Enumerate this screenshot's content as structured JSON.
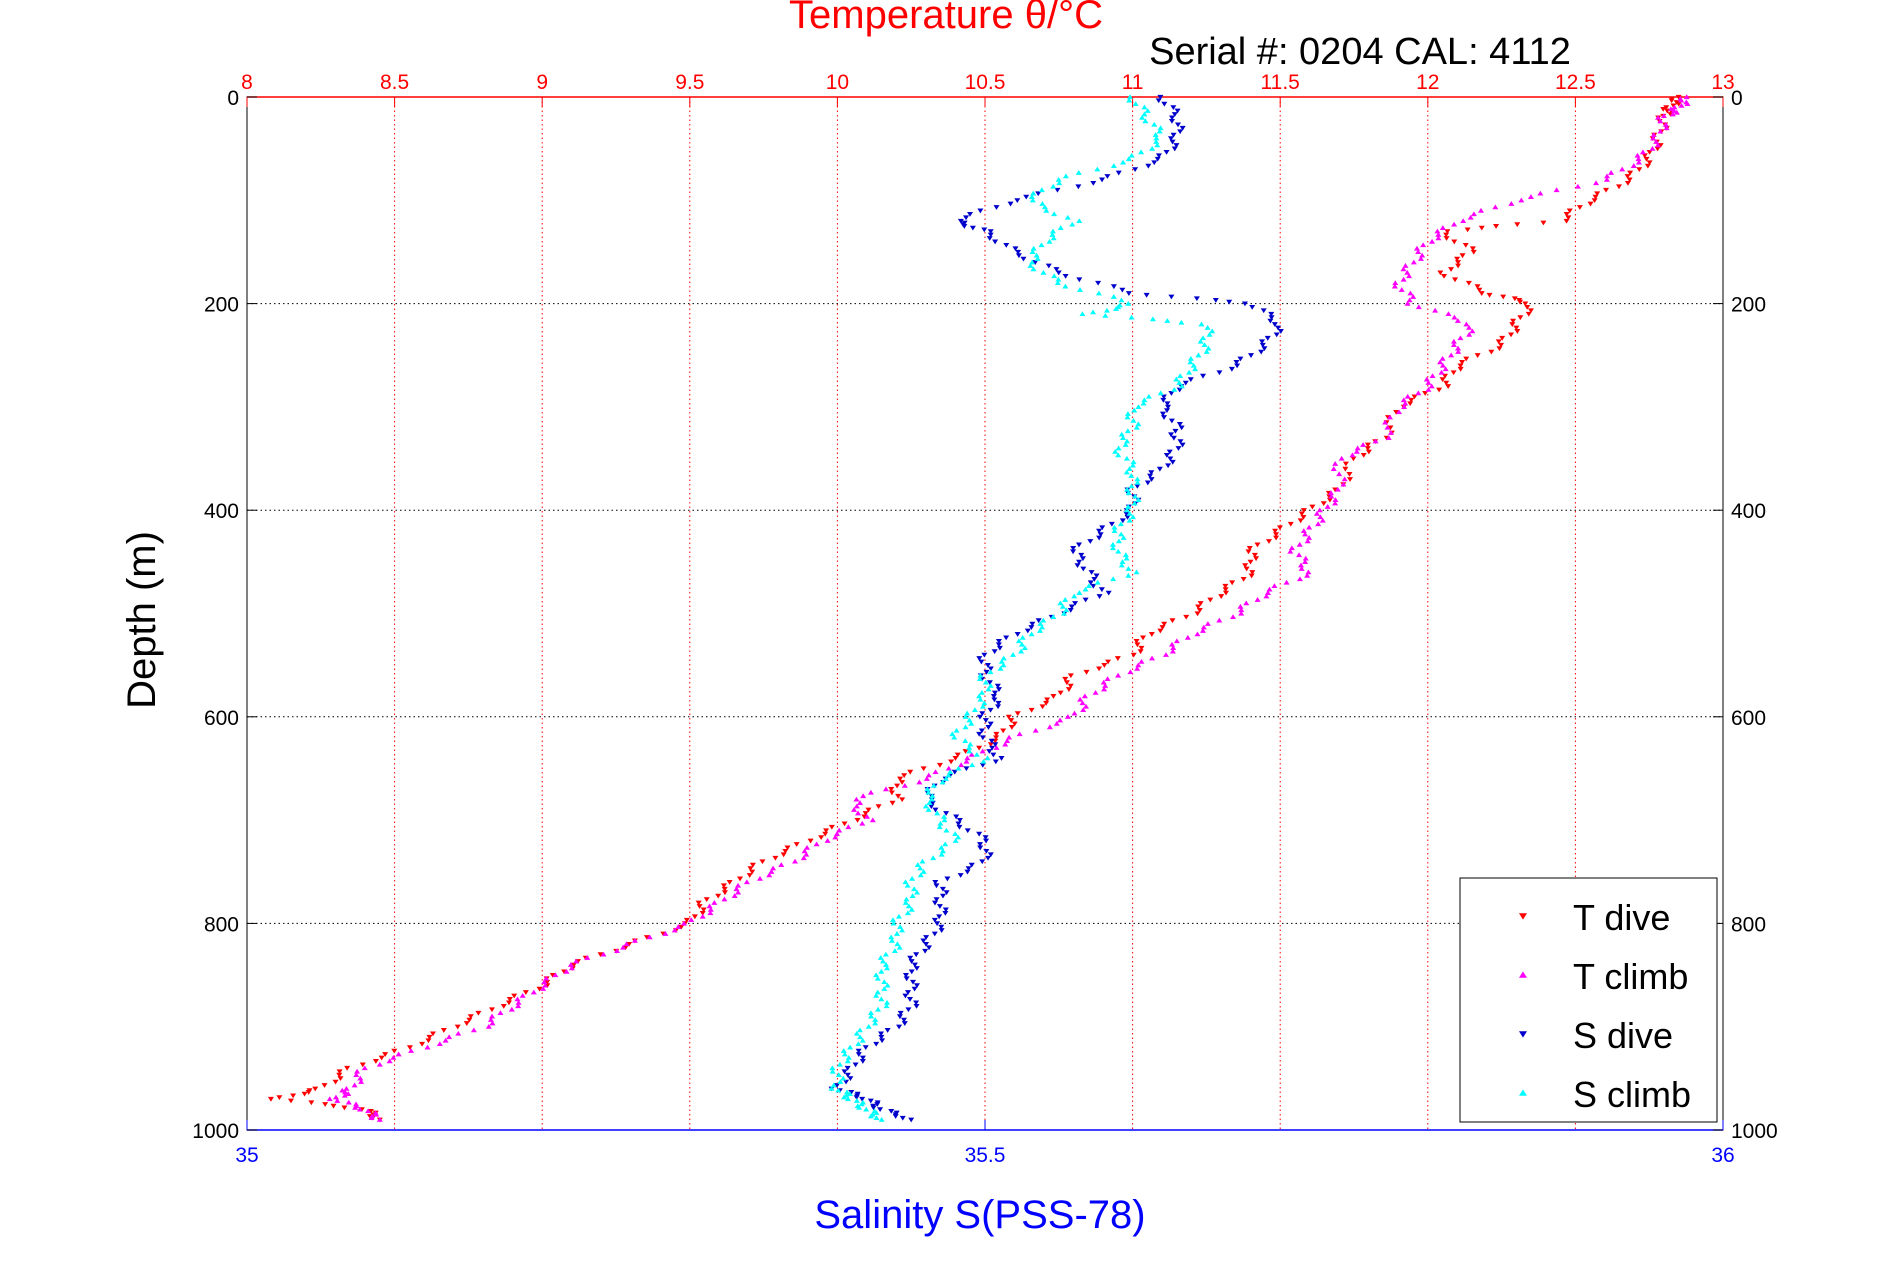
{
  "chart_data": {
    "type": "scatter",
    "title": "Temperature θ/°C",
    "subtitle": "Serial #: 0204  CAL: 4112",
    "xlabel_bottom": "Salinity S(PSS-78)",
    "ylabel": "Depth (m)",
    "top_axis": {
      "range": [
        8,
        13
      ],
      "ticks": [
        "8",
        "8.5",
        "9",
        "9.5",
        "10",
        "10.5",
        "11",
        "11.5",
        "12",
        "12.5",
        "13"
      ],
      "color": "#ff0000"
    },
    "bottom_axis": {
      "range": [
        35,
        36
      ],
      "ticks": [
        "35",
        "35.5",
        "36"
      ],
      "color": "#0000ff"
    },
    "y_axis": {
      "range": [
        0,
        1000
      ],
      "reversed": true,
      "ticks": [
        "0",
        "200",
        "400",
        "600",
        "800",
        "1000"
      ]
    },
    "grid": true,
    "legend_position": "bottom-right",
    "series": [
      {
        "name": "T dive",
        "axis": "temperature",
        "color": "#ff0000",
        "marker": "triangle-down",
        "depth": [
          0,
          10,
          20,
          40,
          60,
          80,
          100,
          120,
          130,
          150,
          170,
          190,
          200,
          220,
          240,
          260,
          280,
          300,
          330,
          350,
          380,
          400,
          420,
          440,
          460,
          480,
          500,
          520,
          540,
          560,
          580,
          600,
          620,
          640,
          660,
          680,
          700,
          720,
          740,
          760,
          780,
          800,
          820,
          840,
          860,
          880,
          900,
          920,
          940,
          960,
          970,
          980,
          990
        ],
        "values": [
          12.85,
          12.82,
          12.8,
          12.78,
          12.75,
          12.68,
          12.55,
          12.45,
          12.05,
          12.15,
          12.05,
          12.2,
          12.35,
          12.3,
          12.25,
          12.1,
          12.05,
          11.9,
          11.85,
          11.75,
          11.7,
          11.6,
          11.5,
          11.4,
          11.4,
          11.3,
          11.2,
          11.05,
          11.0,
          10.8,
          10.75,
          10.6,
          10.55,
          10.4,
          10.2,
          10.2,
          10.05,
          9.9,
          9.75,
          9.65,
          9.55,
          9.5,
          9.3,
          9.1,
          9.0,
          8.85,
          8.7,
          8.55,
          8.35,
          8.25,
          8.1,
          8.4,
          8.45
        ]
      },
      {
        "name": "T climb",
        "axis": "temperature",
        "color": "#ff00ff",
        "marker": "triangle-up",
        "depth": [
          0,
          10,
          20,
          40,
          60,
          80,
          100,
          120,
          140,
          160,
          180,
          200,
          220,
          240,
          260,
          280,
          300,
          330,
          350,
          380,
          400,
          420,
          440,
          460,
          480,
          500,
          520,
          540,
          560,
          580,
          600,
          620,
          640,
          660,
          680,
          700,
          720,
          740,
          760,
          780,
          800,
          820,
          840,
          860,
          880,
          900,
          920,
          940,
          960,
          970,
          980,
          990
        ],
        "values": [
          12.88,
          12.85,
          12.8,
          12.78,
          12.72,
          12.6,
          12.3,
          12.1,
          12.0,
          11.95,
          11.9,
          11.95,
          12.15,
          12.1,
          12.05,
          12.0,
          11.9,
          11.85,
          11.7,
          11.7,
          11.65,
          11.6,
          11.55,
          11.6,
          11.45,
          11.35,
          11.2,
          11.1,
          10.95,
          10.85,
          10.8,
          10.6,
          10.45,
          10.3,
          10.05,
          10.1,
          9.95,
          9.85,
          9.7,
          9.6,
          9.5,
          9.3,
          9.1,
          9.0,
          8.9,
          8.8,
          8.6,
          8.4,
          8.35,
          8.3,
          8.4,
          8.45
        ]
      },
      {
        "name": "S dive",
        "axis": "salinity",
        "color": "#0000cc",
        "marker": "triangle-down",
        "depth": [
          0,
          20,
          40,
          60,
          80,
          100,
          120,
          130,
          150,
          170,
          190,
          200,
          220,
          240,
          260,
          280,
          300,
          320,
          340,
          360,
          380,
          400,
          420,
          440,
          460,
          480,
          500,
          520,
          540,
          560,
          580,
          600,
          620,
          640,
          660,
          680,
          700,
          720,
          740,
          760,
          780,
          800,
          820,
          840,
          860,
          880,
          900,
          920,
          940,
          960,
          970,
          980,
          990
        ],
        "values": [
          35.62,
          35.63,
          35.63,
          35.62,
          35.58,
          35.52,
          35.48,
          35.5,
          35.52,
          35.55,
          35.6,
          35.68,
          35.7,
          35.69,
          35.67,
          35.63,
          35.62,
          35.63,
          35.63,
          35.62,
          35.6,
          35.6,
          35.58,
          35.56,
          35.57,
          35.58,
          35.55,
          35.52,
          35.5,
          35.5,
          35.51,
          35.5,
          35.5,
          35.51,
          35.47,
          35.46,
          35.48,
          35.5,
          35.5,
          35.47,
          35.47,
          35.47,
          35.46,
          35.45,
          35.45,
          35.45,
          35.44,
          35.42,
          35.41,
          35.4,
          35.42,
          35.43,
          35.45
        ]
      },
      {
        "name": "S climb",
        "axis": "salinity",
        "color": "#00ffff",
        "marker": "triangle-up",
        "depth": [
          0,
          20,
          40,
          60,
          80,
          100,
          120,
          140,
          160,
          180,
          200,
          210,
          220,
          240,
          260,
          280,
          300,
          320,
          340,
          360,
          380,
          400,
          420,
          440,
          460,
          480,
          500,
          520,
          540,
          560,
          580,
          600,
          620,
          640,
          660,
          680,
          700,
          720,
          740,
          760,
          780,
          800,
          820,
          840,
          860,
          880,
          900,
          920,
          940,
          960,
          970,
          980,
          990
        ],
        "values": [
          35.6,
          35.61,
          35.62,
          35.6,
          35.55,
          35.53,
          35.56,
          35.54,
          35.53,
          35.55,
          35.6,
          35.57,
          35.65,
          35.65,
          35.64,
          35.63,
          35.6,
          35.6,
          35.59,
          35.6,
          35.6,
          35.6,
          35.59,
          35.59,
          35.6,
          35.56,
          35.55,
          35.53,
          35.52,
          35.5,
          35.5,
          35.49,
          35.48,
          35.5,
          35.47,
          35.46,
          35.47,
          35.48,
          35.46,
          35.45,
          35.45,
          35.44,
          35.44,
          35.43,
          35.43,
          35.43,
          35.42,
          35.41,
          35.4,
          35.4,
          35.41,
          35.42,
          35.43
        ]
      }
    ]
  }
}
